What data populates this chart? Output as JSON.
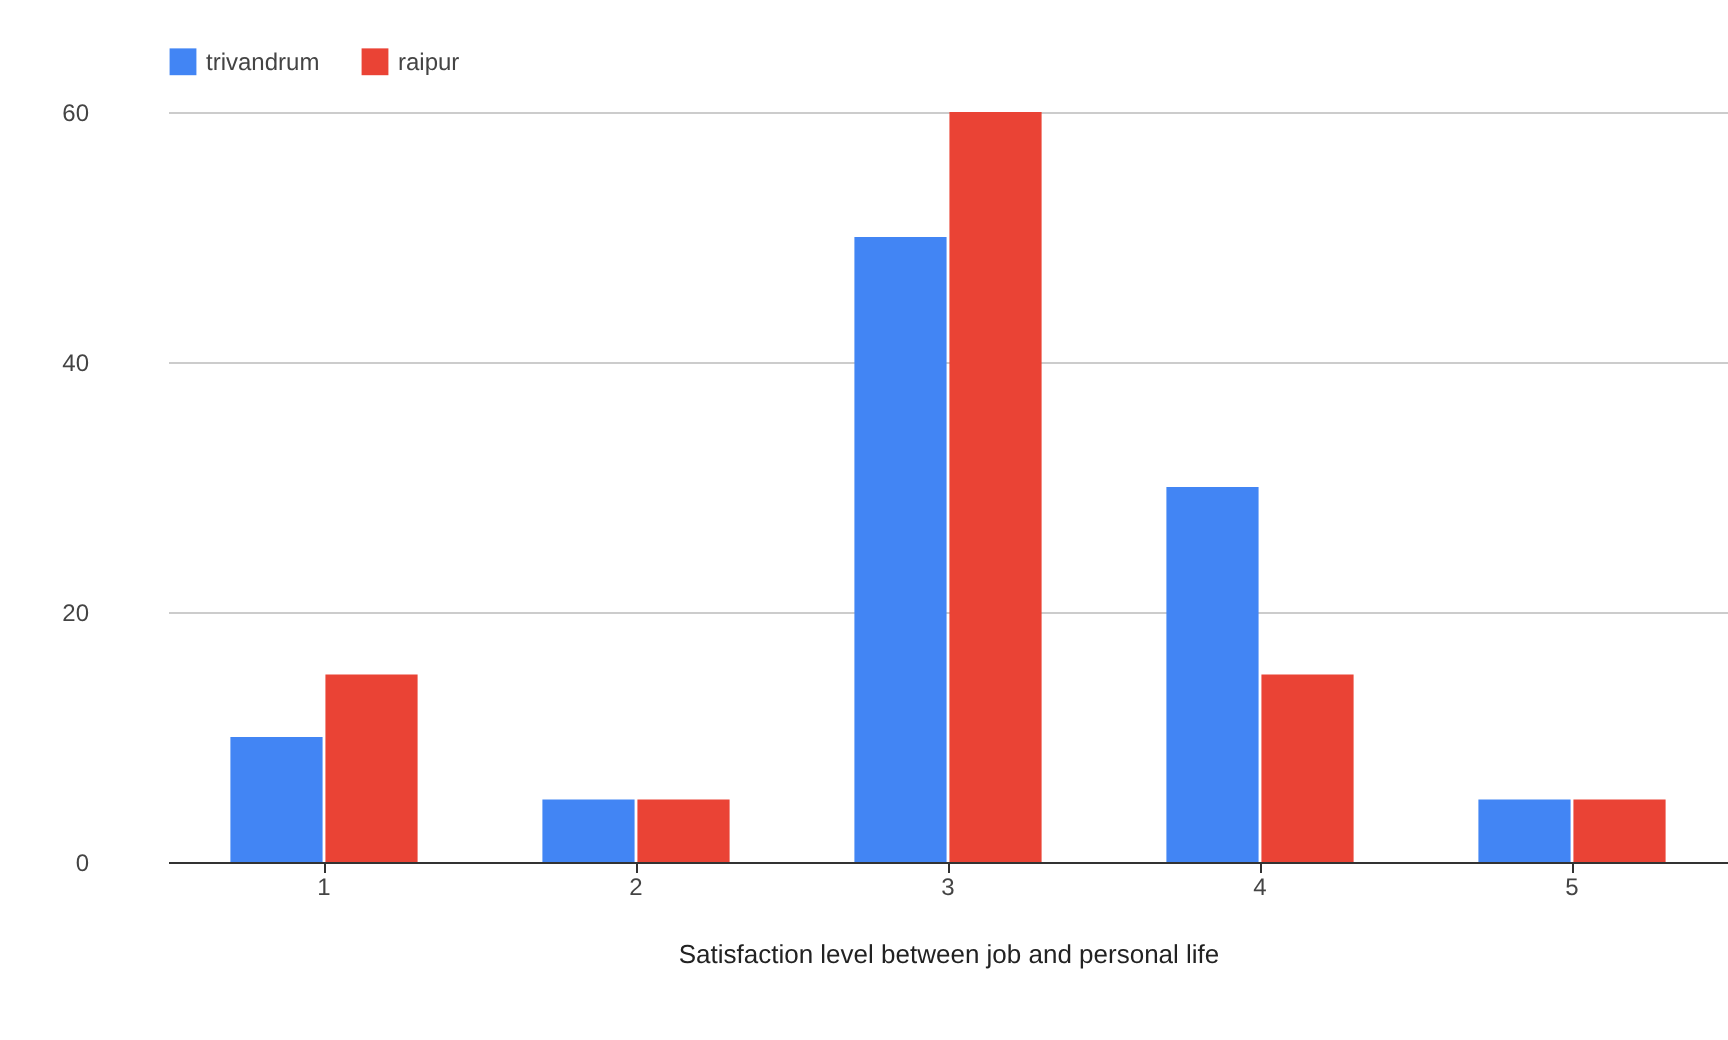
{
  "chart_data": {
    "type": "bar",
    "xlabel": "Satisfaction level between job and personal life",
    "categories": [
      "1",
      "2",
      "3",
      "4",
      "5"
    ],
    "series": [
      {
        "name": "trivandrum",
        "color": "#4285f4",
        "values": [
          10,
          5,
          50,
          30,
          5
        ]
      },
      {
        "name": "raipur",
        "color": "#ea4335",
        "values": [
          15,
          5,
          60,
          15,
          5
        ]
      }
    ],
    "ylim": [
      0,
      60
    ],
    "yticks": [
      0,
      20,
      40,
      60
    ],
    "grid": "y",
    "legend": "top"
  }
}
